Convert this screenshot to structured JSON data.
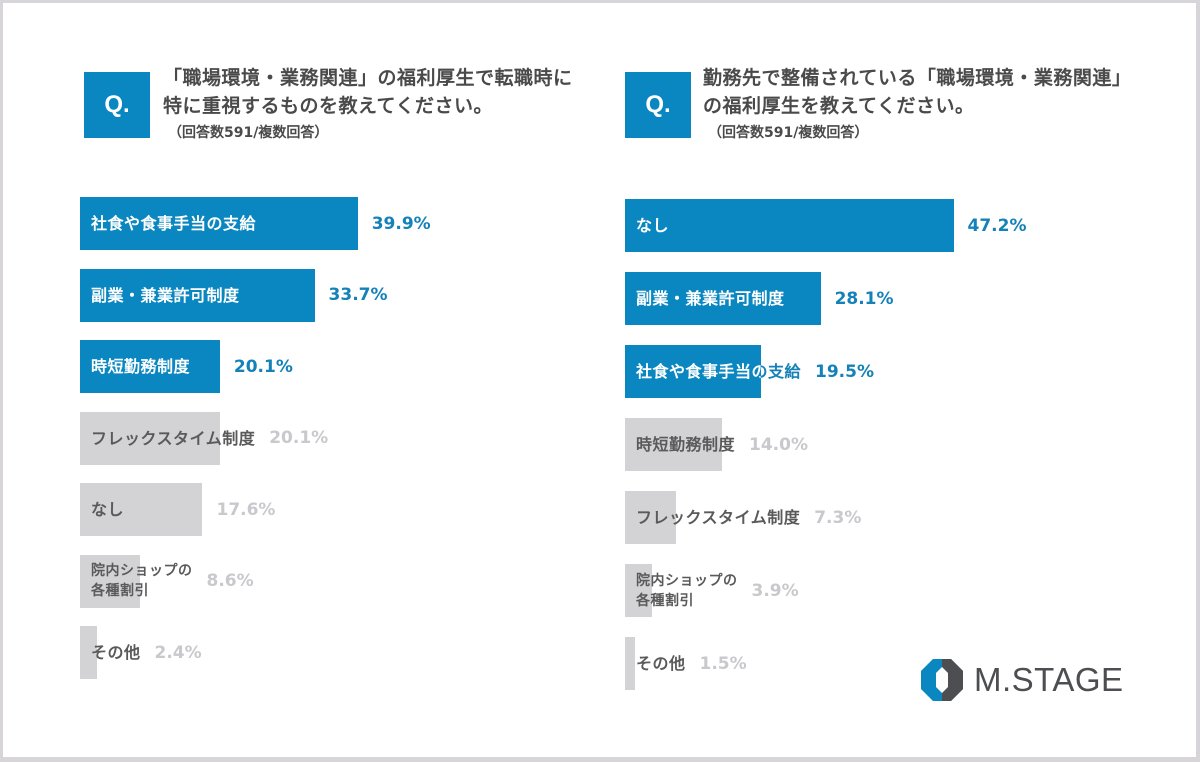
{
  "left_panel": {
    "q_badge": "Q.",
    "question_line1": "「職場環境・業務関連」の福利厚生で転職時に",
    "question_line2": "特に重視するものを教えてください。",
    "note": "（回答数591/複数回答）"
  },
  "right_panel": {
    "q_badge": "Q.",
    "question_line1": "勤務先で整備されている「職場環境・業務関連」",
    "question_line2": "の福利厚生を教えてください。",
    "note": "（回答数591/複数回答）"
  },
  "brand": {
    "logo_text": "M.STAGE",
    "accent": "#0a87c0",
    "muted": "#d3d2d5"
  },
  "chart_data": [
    {
      "type": "bar",
      "orientation": "horizontal",
      "title": "「職場環境・業務関連」の福利厚生で転職時に特に重視するもの（回答数591/複数回答）",
      "categories": [
        "社食や食事手当の支給",
        "副業・兼業許可制度",
        "時短勤務制度",
        "フレックスタイム制度",
        "なし",
        "院内ショップの各種割引",
        "その他"
      ],
      "values": [
        39.9,
        33.7,
        20.1,
        20.1,
        17.6,
        8.6,
        2.4
      ],
      "value_labels": [
        "39.9%",
        "33.7%",
        "20.1%",
        "20.1%",
        "17.6%",
        "8.6%",
        "2.4%"
      ],
      "highlighted": [
        true,
        true,
        true,
        false,
        false,
        false,
        false
      ],
      "label_lines": [
        [
          "社食や食事手当の支給"
        ],
        [
          "副業・兼業許可制度"
        ],
        [
          "時短勤務制度"
        ],
        [
          "フレックスタイム制度"
        ],
        [
          "なし"
        ],
        [
          "院内ショップの",
          "各種割引"
        ],
        [
          "その他"
        ]
      ],
      "unit": "%",
      "xlabel": "",
      "ylabel": "",
      "grid": false
    },
    {
      "type": "bar",
      "orientation": "horizontal",
      "title": "勤務先で整備されている「職場環境・業務関連」の福利厚生（回答数591/複数回答）",
      "categories": [
        "なし",
        "副業・兼業許可制度",
        "社食や食事手当の支給",
        "時短勤務制度",
        "フレックスタイム制度",
        "院内ショップの各種割引",
        "その他"
      ],
      "values": [
        47.2,
        28.1,
        19.5,
        14.0,
        7.3,
        3.9,
        1.5
      ],
      "value_labels": [
        "47.2%",
        "28.1%",
        "19.5%",
        "14.0%",
        "7.3%",
        "3.9%",
        "1.5%"
      ],
      "highlighted": [
        true,
        true,
        true,
        false,
        false,
        false,
        false
      ],
      "label_lines": [
        [
          "なし"
        ],
        [
          "副業・兼業許可制度"
        ],
        [
          "社食や食事手当の支給"
        ],
        [
          "時短勤務制度"
        ],
        [
          "フレックスタイム制度"
        ],
        [
          "院内ショップの",
          "各種割引"
        ],
        [
          "その他"
        ]
      ],
      "unit": "%",
      "xlabel": "",
      "ylabel": "",
      "grid": false
    }
  ]
}
